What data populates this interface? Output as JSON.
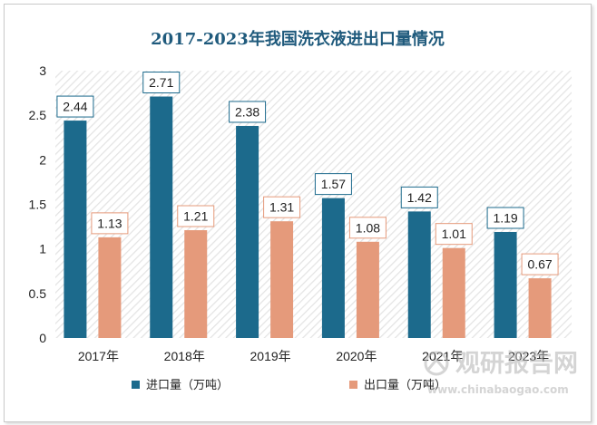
{
  "chart_data": {
    "type": "bar",
    "title": "2017-2023年我国洗衣液进出口量情况",
    "categories": [
      "2017年",
      "2018年",
      "2019年",
      "2020年",
      "2021年",
      "2023年"
    ],
    "series": [
      {
        "name": "进口量（万吨）",
        "color": "#1c6a8c",
        "values": [
          2.44,
          2.71,
          2.38,
          1.57,
          1.42,
          1.19
        ]
      },
      {
        "name": "出口量（万吨）",
        "color": "#e59a7b",
        "values": [
          1.13,
          1.21,
          1.31,
          1.08,
          1.01,
          0.67
        ]
      }
    ],
    "ylim": [
      0,
      3
    ],
    "yticks": [
      "0",
      "0.5",
      "1",
      "1.5",
      "2",
      "2.5",
      "3"
    ],
    "ytick_values": [
      0,
      0.5,
      1,
      1.5,
      2,
      2.5,
      3
    ],
    "grid": false,
    "legend": "bottom",
    "xlabel": "",
    "ylabel": ""
  },
  "watermark": {
    "main": "观研报告网",
    "sub": "www.chinabaogao.com"
  }
}
